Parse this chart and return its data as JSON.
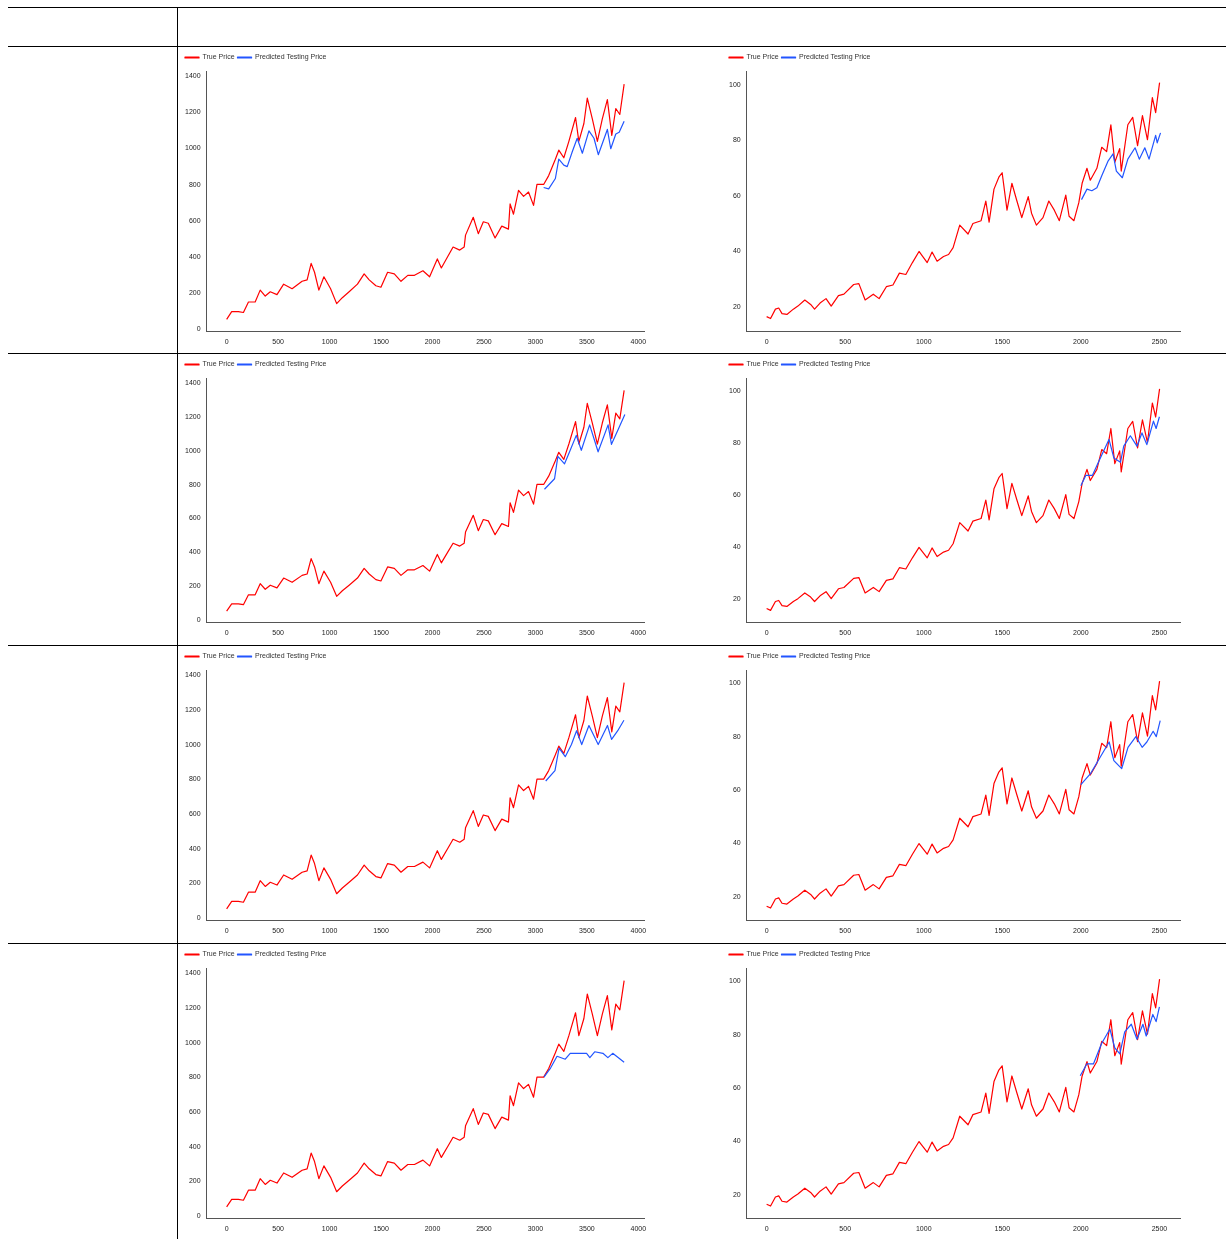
{
  "chart_data": [
    {
      "type": "line",
      "legend": "top left",
      "xlim": [
        -195,
        4055
      ],
      "ylim": [
        -15,
        1430
      ],
      "xticks": [
        0,
        500,
        1000,
        1500,
        2000,
        2500,
        3000,
        3500,
        4000
      ],
      "yticks": [
        0,
        200,
        400,
        600,
        800,
        1000,
        1200,
        1400
      ],
      "series": [
        {
          "name": "True Price",
          "color": "#ff0000",
          "x": [
            0,
            49,
            114,
            163,
            212,
            277,
            326,
            375,
            424,
            489,
            554,
            636,
            733,
            782,
            821,
            854,
            896,
            945,
            1010,
            1069,
            1124,
            1190,
            1271,
            1336,
            1385,
            1450,
            1499,
            1564,
            1629,
            1694,
            1760,
            1825,
            1907,
            1972,
            2047,
            2086,
            2151,
            2200,
            2265,
            2308,
            2321,
            2396,
            2445,
            2494,
            2542,
            2608,
            2673,
            2738,
            2754,
            2787,
            2836,
            2885,
            2933,
            2982,
            3015,
            3080,
            3129,
            3194,
            3227,
            3276,
            3325,
            3390,
            3422,
            3471,
            3504,
            3553,
            3602,
            3650,
            3699,
            3742,
            3781,
            3820,
            3862
          ],
          "values": [
            53,
            96,
            96,
            91,
            149,
            149,
            215,
            182,
            206,
            190,
            248,
            223,
            264,
            272,
            363,
            314,
            215,
            289,
            223,
            140,
            173,
            206,
            248,
            305,
            272,
            239,
            231,
            314,
            305,
            264,
            297,
            297,
            322,
            289,
            388,
            338,
            404,
            454,
            437,
            454,
            520,
            619,
            528,
            594,
            586,
            504,
            570,
            553,
            693,
            636,
            768,
            735,
            759,
            685,
            801,
            801,
            850,
            941,
            991,
            949,
            1040,
            1172,
            1040,
            1139,
            1280,
            1164,
            1040,
            1164,
            1271,
            1073,
            1222,
            1189,
            1357
          ]
        },
        {
          "name": "Predicted Testing Price",
          "color": "#2255ff",
          "x": [
            3080,
            3129,
            3194,
            3227,
            3276,
            3309,
            3358,
            3406,
            3456,
            3520,
            3569,
            3611,
            3699,
            3732,
            3781,
            3814,
            3862
          ],
          "values": [
            784,
            776,
            834,
            941,
            908,
            900,
            982,
            1057,
            974,
            1098,
            1057,
            966,
            1106,
            999,
            1081,
            1090,
            1152
          ]
        }
      ]
    },
    {
      "type": "line",
      "legend": "top left",
      "xlim": [
        -127,
        2631
      ],
      "ylim": [
        11,
        105
      ],
      "xticks": [
        0,
        500,
        1000,
        1500,
        2000,
        2500
      ],
      "yticks": [
        20,
        40,
        60,
        80,
        100
      ],
      "series": [
        {
          "name": "True Price",
          "color": "#ff0000",
          "x": [
            0,
            25,
            56,
            77,
            98,
            129,
            170,
            199,
            243,
            280,
            305,
            340,
            378,
            411,
            457,
            492,
            554,
            587,
            627,
            679,
            716,
            762,
            804,
            845,
            886,
            928,
            970,
            1022,
            1053,
            1085,
            1126,
            1158,
            1187,
            1229,
            1282,
            1313,
            1365,
            1395,
            1416,
            1447,
            1478,
            1499,
            1530,
            1561,
            1593,
            1624,
            1665,
            1686,
            1717,
            1759,
            1796,
            1831,
            1863,
            1904,
            1925,
            1956,
            1987,
            2008,
            2039,
            2060,
            2102,
            2133,
            2164,
            2191,
            2216,
            2247,
            2257,
            2299,
            2330,
            2361,
            2392,
            2424,
            2455,
            2476,
            2501
          ],
          "values": [
            16.4,
            15.7,
            19.1,
            19.5,
            17.5,
            17.2,
            19.1,
            20.2,
            22.4,
            20.8,
            19.1,
            21.3,
            22.9,
            20.2,
            24.0,
            24.5,
            28.0,
            28.3,
            22.4,
            24.5,
            22.9,
            27.2,
            27.8,
            32.1,
            31.6,
            35.9,
            39.9,
            35.9,
            39.7,
            36.4,
            38.1,
            38.8,
            41.3,
            49.4,
            46.2,
            50.0,
            51.0,
            58.1,
            50.5,
            62.4,
            66.7,
            68.3,
            54.8,
            64.5,
            58.1,
            52.1,
            59.7,
            53.7,
            49.4,
            52.1,
            58.1,
            54.8,
            51.0,
            60.2,
            52.6,
            51.0,
            57.5,
            64.5,
            69.9,
            65.6,
            69.9,
            77.5,
            75.9,
            85.6,
            72.1,
            77.0,
            68.9,
            85.6,
            88.3,
            78.1,
            88.9,
            80.2,
            95.4,
            90.0,
            100.8
          ]
        },
        {
          "name": "Predicted Testing Price",
          "color": "#2255ff",
          "x": [
            2004,
            2039,
            2070,
            2102,
            2133,
            2174,
            2205,
            2226,
            2264,
            2299,
            2345,
            2372,
            2407,
            2434,
            2476,
            2486,
            2507
          ],
          "values": [
            58.6,
            62.4,
            61.8,
            62.9,
            67.2,
            72.6,
            75.1,
            68.9,
            66.5,
            73.2,
            77.3,
            73.2,
            77.3,
            73.2,
            81.8,
            79.1,
            82.7
          ]
        }
      ]
    },
    {
      "type": "line",
      "legend": "top left",
      "xlim": [
        -195,
        4055
      ],
      "ylim": [
        -15,
        1430
      ],
      "xticks": [
        0,
        500,
        1000,
        1500,
        2000,
        2500,
        3000,
        3500,
        4000
      ],
      "yticks": [
        0,
        200,
        400,
        600,
        800,
        1000,
        1200,
        1400
      ],
      "series": [
        {
          "name": "True Price",
          "color": "#ff0000",
          "x": [
            0,
            49,
            114,
            163,
            212,
            277,
            326,
            375,
            424,
            489,
            554,
            636,
            733,
            782,
            821,
            854,
            896,
            945,
            1010,
            1069,
            1124,
            1190,
            1271,
            1336,
            1385,
            1450,
            1499,
            1564,
            1629,
            1694,
            1760,
            1825,
            1907,
            1972,
            2047,
            2086,
            2151,
            2200,
            2265,
            2308,
            2321,
            2396,
            2445,
            2494,
            2542,
            2608,
            2673,
            2738,
            2754,
            2787,
            2836,
            2885,
            2933,
            2982,
            3015,
            3080,
            3129,
            3194,
            3227,
            3276,
            3325,
            3390,
            3422,
            3471,
            3504,
            3553,
            3602,
            3650,
            3699,
            3742,
            3781,
            3820,
            3862
          ],
          "values": [
            53,
            96,
            96,
            91,
            149,
            149,
            215,
            182,
            206,
            190,
            248,
            223,
            264,
            272,
            363,
            314,
            215,
            289,
            223,
            140,
            173,
            206,
            248,
            305,
            272,
            239,
            231,
            314,
            305,
            264,
            297,
            297,
            322,
            289,
            388,
            338,
            404,
            454,
            437,
            454,
            520,
            619,
            528,
            594,
            586,
            504,
            570,
            553,
            693,
            636,
            768,
            735,
            759,
            685,
            801,
            801,
            850,
            941,
            991,
            949,
            1040,
            1172,
            1040,
            1139,
            1280,
            1164,
            1040,
            1164,
            1271,
            1073,
            1222,
            1189,
            1357
          ]
        },
        {
          "name": "Predicted Testing Price",
          "color": "#2255ff",
          "x": [
            3088,
            3186,
            3218,
            3283,
            3332,
            3397,
            3446,
            3527,
            3609,
            3706,
            3739,
            3804,
            3869
          ],
          "values": [
            773,
            835,
            967,
            923,
            994,
            1091,
            1003,
            1153,
            994,
            1153,
            1038,
            1126,
            1215
          ]
        }
      ]
    },
    {
      "type": "line",
      "legend": "top left",
      "xlim": [
        -127,
        2631
      ],
      "ylim": [
        11,
        105
      ],
      "xticks": [
        0,
        500,
        1000,
        1500,
        2000,
        2500
      ],
      "yticks": [
        20,
        40,
        60,
        80,
        100
      ],
      "series": [
        {
          "name": "True Price",
          "color": "#ff0000",
          "x": [
            0,
            25,
            56,
            77,
            98,
            129,
            170,
            199,
            243,
            280,
            305,
            340,
            378,
            411,
            457,
            492,
            554,
            587,
            627,
            679,
            716,
            762,
            804,
            845,
            886,
            928,
            970,
            1022,
            1053,
            1085,
            1126,
            1158,
            1187,
            1229,
            1282,
            1313,
            1365,
            1395,
            1416,
            1447,
            1478,
            1499,
            1530,
            1561,
            1593,
            1624,
            1665,
            1686,
            1717,
            1759,
            1796,
            1831,
            1863,
            1904,
            1925,
            1956,
            1987,
            2008,
            2039,
            2060,
            2102,
            2133,
            2164,
            2191,
            2216,
            2247,
            2257,
            2299,
            2330,
            2361,
            2392,
            2424,
            2455,
            2476,
            2501
          ],
          "values": [
            16.4,
            15.7,
            19.1,
            19.5,
            17.5,
            17.2,
            19.1,
            20.2,
            22.4,
            20.8,
            19.1,
            21.3,
            22.9,
            20.2,
            24.0,
            24.5,
            28.0,
            28.3,
            22.4,
            24.5,
            22.9,
            27.2,
            27.8,
            32.1,
            31.6,
            35.9,
            39.9,
            35.9,
            39.7,
            36.4,
            38.1,
            38.8,
            41.3,
            49.4,
            46.2,
            50.0,
            51.0,
            58.1,
            50.5,
            62.4,
            66.7,
            68.3,
            54.8,
            64.5,
            58.1,
            52.1,
            59.7,
            53.7,
            49.4,
            52.1,
            58.1,
            54.8,
            51.0,
            60.2,
            52.6,
            51.0,
            57.5,
            64.5,
            69.9,
            65.6,
            69.9,
            77.5,
            75.9,
            85.6,
            72.1,
            77.0,
            68.9,
            85.6,
            88.3,
            78.1,
            88.9,
            80.2,
            95.4,
            90.0,
            100.8
          ]
        },
        {
          "name": "Predicted Testing Price",
          "color": "#2255ff",
          "x": [
            2000,
            2032,
            2074,
            2116,
            2179,
            2210,
            2252,
            2273,
            2315,
            2357,
            2389,
            2420,
            2462,
            2479,
            2500
          ],
          "values": [
            63.6,
            67.6,
            67.6,
            73.2,
            81.4,
            74.3,
            72.6,
            78.8,
            82.8,
            78.8,
            83.9,
            79.4,
            88.4,
            85.6,
            90.1
          ]
        }
      ]
    },
    {
      "type": "line",
      "legend": "top left",
      "xlim": [
        -195,
        4055
      ],
      "ylim": [
        -15,
        1430
      ],
      "xticks": [
        0,
        500,
        1000,
        1500,
        2000,
        2500,
        3000,
        3500,
        4000
      ],
      "yticks": [
        0,
        200,
        400,
        600,
        800,
        1000,
        1200,
        1400
      ],
      "series": [
        {
          "name": "True Price",
          "color": "#ff0000",
          "x": [
            0,
            49,
            114,
            163,
            212,
            277,
            326,
            375,
            424,
            489,
            554,
            636,
            733,
            782,
            821,
            854,
            896,
            945,
            1010,
            1069,
            1124,
            1190,
            1271,
            1336,
            1385,
            1450,
            1499,
            1564,
            1629,
            1694,
            1760,
            1825,
            1907,
            1972,
            2047,
            2086,
            2151,
            2200,
            2265,
            2308,
            2321,
            2396,
            2445,
            2494,
            2542,
            2608,
            2673,
            2738,
            2754,
            2787,
            2836,
            2885,
            2933,
            2982,
            3015,
            3080,
            3129,
            3194,
            3227,
            3276,
            3325,
            3390,
            3422,
            3471,
            3504,
            3553,
            3602,
            3650,
            3699,
            3742,
            3781,
            3820,
            3862
          ],
          "values": [
            53,
            96,
            96,
            91,
            149,
            149,
            215,
            182,
            206,
            190,
            248,
            223,
            264,
            272,
            363,
            314,
            215,
            289,
            223,
            140,
            173,
            206,
            248,
            305,
            272,
            239,
            231,
            314,
            305,
            264,
            297,
            297,
            322,
            289,
            388,
            338,
            404,
            454,
            437,
            454,
            520,
            619,
            528,
            594,
            586,
            504,
            570,
            553,
            693,
            636,
            768,
            735,
            759,
            685,
            801,
            801,
            850,
            941,
            991,
            949,
            1040,
            1172,
            1040,
            1139,
            1280,
            1164,
            1040,
            1164,
            1271,
            1073,
            1222,
            1189,
            1357
          ]
        },
        {
          "name": "Predicted Testing Price",
          "color": "#2255ff",
          "x": [
            3100,
            3190,
            3230,
            3290,
            3350,
            3400,
            3450,
            3520,
            3610,
            3700,
            3740,
            3800,
            3860
          ],
          "values": [
            790,
            850,
            980,
            930,
            1000,
            1080,
            1000,
            1110,
            1000,
            1110,
            1030,
            1080,
            1140
          ]
        }
      ]
    },
    {
      "type": "line",
      "legend": "top left",
      "xlim": [
        -127,
        2631
      ],
      "ylim": [
        11,
        105
      ],
      "xticks": [
        0,
        500,
        1000,
        1500,
        2000,
        2500
      ],
      "yticks": [
        20,
        40,
        60,
        80,
        100
      ],
      "series": [
        {
          "name": "True Price",
          "color": "#ff0000",
          "x": [
            0,
            25,
            56,
            77,
            98,
            129,
            170,
            199,
            243,
            280,
            305,
            340,
            378,
            411,
            457,
            492,
            554,
            587,
            627,
            679,
            716,
            762,
            804,
            845,
            886,
            928,
            970,
            1022,
            1053,
            1085,
            1126,
            1158,
            1187,
            1229,
            1282,
            1313,
            1365,
            1395,
            1416,
            1447,
            1478,
            1499,
            1530,
            1561,
            1593,
            1624,
            1665,
            1686,
            1717,
            1759,
            1796,
            1831,
            1863,
            1904,
            1925,
            1956,
            1987,
            2008,
            2039,
            2060,
            2102,
            2133,
            2164,
            2191,
            2216,
            2247,
            2257,
            2299,
            2330,
            2361,
            2392,
            2424,
            2455,
            2476,
            2501
          ],
          "values": [
            16.4,
            15.7,
            19.1,
            19.5,
            17.5,
            17.2,
            19.1,
            20.2,
            22.4,
            20.8,
            19.1,
            21.3,
            22.9,
            20.2,
            24.0,
            24.5,
            28.0,
            28.3,
            22.4,
            24.5,
            22.9,
            27.2,
            27.8,
            32.1,
            31.6,
            35.9,
            39.9,
            35.9,
            39.7,
            36.4,
            38.1,
            38.8,
            41.3,
            49.4,
            46.2,
            50.0,
            51.0,
            58.1,
            50.5,
            62.4,
            66.7,
            68.3,
            54.8,
            64.5,
            58.1,
            52.1,
            59.7,
            53.7,
            49.4,
            52.1,
            58.1,
            54.8,
            51.0,
            60.2,
            52.6,
            51.0,
            57.5,
            64.5,
            69.9,
            65.6,
            69.9,
            77.5,
            75.9,
            85.6,
            72.1,
            77.0,
            68.9,
            85.6,
            88.3,
            78.1,
            88.9,
            80.2,
            95.4,
            90.0,
            100.8
          ]
        },
        {
          "name": "Predicted Testing Price",
          "color": "#2255ff",
          "x": [
            2000,
            2060,
            2120,
            2180,
            2210,
            2260,
            2300,
            2350,
            2390,
            2420,
            2460,
            2480,
            2505
          ],
          "values": [
            62,
            66,
            72,
            78,
            71,
            68,
            76,
            80,
            76,
            78,
            82,
            80,
            86
          ]
        }
      ]
    },
    {
      "type": "line",
      "legend": "top left",
      "xlim": [
        -195,
        4055
      ],
      "ylim": [
        -15,
        1430
      ],
      "xticks": [
        0,
        500,
        1000,
        1500,
        2000,
        2500,
        3000,
        3500,
        4000
      ],
      "yticks": [
        0,
        200,
        400,
        600,
        800,
        1000,
        1200,
        1400
      ],
      "series": [
        {
          "name": "True Price",
          "color": "#ff0000",
          "x": [
            0,
            49,
            114,
            163,
            212,
            277,
            326,
            375,
            424,
            489,
            554,
            636,
            733,
            782,
            821,
            854,
            896,
            945,
            1010,
            1069,
            1124,
            1190,
            1271,
            1336,
            1385,
            1450,
            1499,
            1564,
            1629,
            1694,
            1760,
            1825,
            1907,
            1972,
            2047,
            2086,
            2151,
            2200,
            2265,
            2308,
            2321,
            2396,
            2445,
            2494,
            2542,
            2608,
            2673,
            2738,
            2754,
            2787,
            2836,
            2885,
            2933,
            2982,
            3015,
            3080,
            3129,
            3194,
            3227,
            3276,
            3325,
            3390,
            3422,
            3471,
            3504,
            3553,
            3602,
            3650,
            3699,
            3742,
            3781,
            3820,
            3862
          ],
          "values": [
            53,
            96,
            96,
            91,
            149,
            149,
            215,
            182,
            206,
            190,
            248,
            223,
            264,
            272,
            363,
            314,
            215,
            289,
            223,
            140,
            173,
            206,
            248,
            305,
            272,
            239,
            231,
            314,
            305,
            264,
            297,
            297,
            322,
            289,
            388,
            338,
            404,
            454,
            437,
            454,
            520,
            619,
            528,
            594,
            586,
            504,
            570,
            553,
            693,
            636,
            768,
            735,
            759,
            685,
            801,
            801,
            850,
            941,
            991,
            949,
            1040,
            1172,
            1040,
            1139,
            1280,
            1164,
            1040,
            1164,
            1271,
            1073,
            1222,
            1189,
            1357
          ]
        },
        {
          "name": "Predicted Testing Price",
          "color": "#2255ff",
          "x": [
            3083,
            3147,
            3210,
            3290,
            3338,
            3497,
            3529,
            3576,
            3656,
            3704,
            3751,
            3862
          ],
          "values": [
            801,
            853,
            921,
            904,
            938,
            938,
            913,
            947,
            938,
            913,
            938,
            887
          ]
        }
      ]
    },
    {
      "type": "line",
      "legend": "top left",
      "xlim": [
        -127,
        2631
      ],
      "ylim": [
        11,
        105
      ],
      "xticks": [
        0,
        500,
        1000,
        1500,
        2000,
        2500
      ],
      "yticks": [
        20,
        40,
        60,
        80,
        100
      ],
      "series": [
        {
          "name": "True Price",
          "color": "#ff0000",
          "x": [
            0,
            25,
            56,
            77,
            98,
            129,
            170,
            199,
            243,
            280,
            305,
            340,
            378,
            411,
            457,
            492,
            554,
            587,
            627,
            679,
            716,
            762,
            804,
            845,
            886,
            928,
            970,
            1022,
            1053,
            1085,
            1126,
            1158,
            1187,
            1229,
            1282,
            1313,
            1365,
            1395,
            1416,
            1447,
            1478,
            1499,
            1530,
            1561,
            1593,
            1624,
            1665,
            1686,
            1717,
            1759,
            1796,
            1831,
            1863,
            1904,
            1925,
            1956,
            1987,
            2008,
            2039,
            2060,
            2102,
            2133,
            2164,
            2191,
            2216,
            2247,
            2257,
            2299,
            2330,
            2361,
            2392,
            2424,
            2455,
            2476,
            2501
          ],
          "values": [
            16.4,
            15.7,
            19.1,
            19.5,
            17.5,
            17.2,
            19.1,
            20.2,
            22.4,
            20.8,
            19.1,
            21.3,
            22.9,
            20.2,
            24.0,
            24.5,
            28.0,
            28.3,
            22.4,
            24.5,
            22.9,
            27.2,
            27.8,
            32.1,
            31.6,
            35.9,
            39.9,
            35.9,
            39.7,
            36.4,
            38.1,
            38.8,
            41.3,
            49.4,
            46.2,
            50.0,
            51.0,
            58.1,
            50.5,
            62.4,
            66.7,
            68.3,
            54.8,
            64.5,
            58.1,
            52.1,
            59.7,
            53.7,
            49.4,
            52.1,
            58.1,
            54.8,
            51.0,
            60.2,
            52.6,
            51.0,
            57.5,
            64.5,
            69.9,
            65.6,
            69.9,
            77.5,
            75.9,
            85.6,
            72.1,
            77.0,
            68.9,
            85.6,
            88.3,
            78.1,
            88.9,
            80.2,
            95.4,
            90.0,
            100.8
          ]
        },
        {
          "name": "Predicted Testing Price",
          "color": "#2255ff",
          "x": [
            1996,
            2038,
            2080,
            2132,
            2185,
            2216,
            2248,
            2279,
            2321,
            2357,
            2395,
            2416,
            2458,
            2479,
            2500
          ],
          "values": [
            64.6,
            69.0,
            69.0,
            76.7,
            82.1,
            75.0,
            72.8,
            81.0,
            83.9,
            78.3,
            83.9,
            79.5,
            87.6,
            84.9,
            90.4
          ]
        }
      ]
    }
  ]
}
